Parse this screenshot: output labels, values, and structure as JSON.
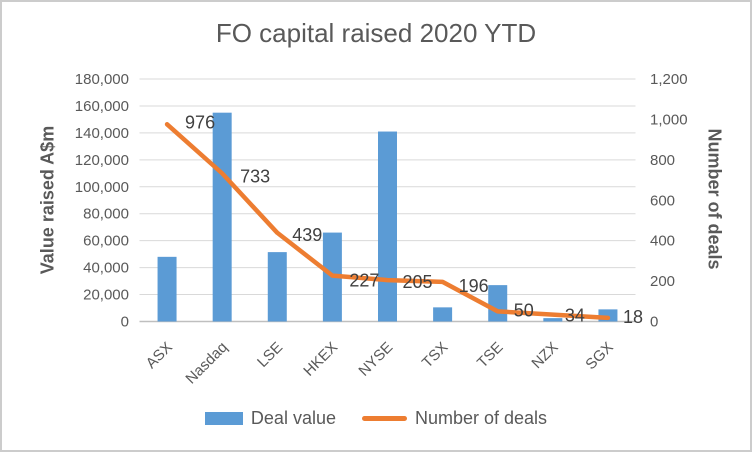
{
  "colors": {
    "bar_blue": "#5B9BD5",
    "line_orange": "#ED7D31",
    "title_gray": "#595959",
    "tick_gray": "#595959",
    "data_label_gray": "#404040",
    "gridline_gray": "#D9D9D9",
    "axis_line_gray": "#BFBFBF",
    "frame_border_gray": "#CCCCCC"
  },
  "chart_data": {
    "type": "combo-bar-line",
    "title": "FO capital raised 2020 YTD",
    "categories": [
      "ASX",
      "Nasdaq",
      "LSE",
      "HKEX",
      "NYSE",
      "TSX",
      "TSE",
      "NZX",
      "SGX"
    ],
    "series": [
      {
        "name": "Deal value",
        "type": "bar",
        "axis": "left",
        "values": [
          48000,
          155000,
          51500,
          66000,
          141000,
          10500,
          27000,
          2500,
          9000
        ]
      },
      {
        "name": "Number of deals",
        "type": "line",
        "axis": "right",
        "values": [
          976,
          733,
          439,
          227,
          205,
          196,
          50,
          34,
          18
        ],
        "data_labels_visible": true
      }
    ],
    "left_axis": {
      "title": "Value raised A$m",
      "min": 0,
      "max": 180000,
      "step": 20000
    },
    "right_axis": {
      "title": "Number of deals",
      "min": 0,
      "max": 1200,
      "step": 200
    },
    "grid": true,
    "legend_position": "bottom"
  }
}
